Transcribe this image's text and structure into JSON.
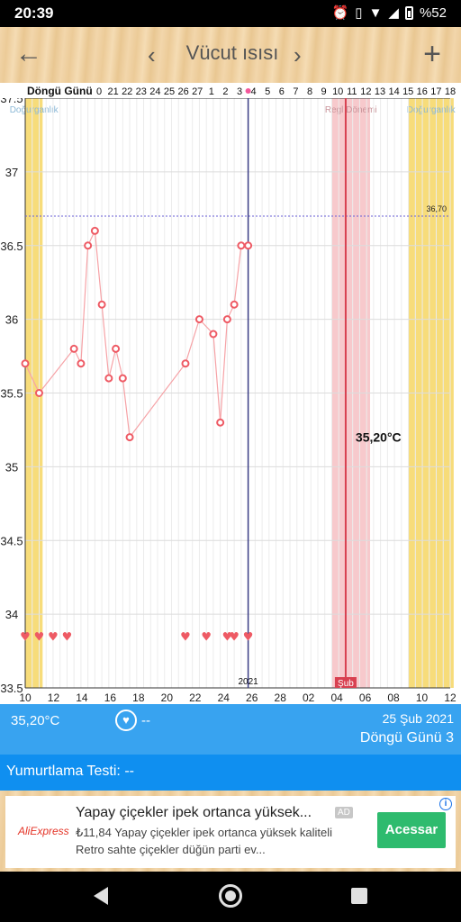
{
  "status": {
    "time": "20:39",
    "battery": "%52",
    "icons": [
      "alarm-icon",
      "vibrate-icon",
      "wifi-icon",
      "signal-icon",
      "battery-icon"
    ]
  },
  "header": {
    "title": "Vücut ısısı",
    "prev": "‹",
    "next": "›",
    "back": "←",
    "add": "+"
  },
  "chart_data": {
    "type": "line",
    "cycle_header_label": "Döngü Günü",
    "cycle_days": [
      "0",
      "21",
      "22",
      "23",
      "24",
      "25",
      "26",
      "27",
      "1",
      "2",
      "3",
      "4",
      "5",
      "6",
      "7",
      "8",
      "9",
      "10",
      "11",
      "12",
      "13",
      "14",
      "15",
      "16",
      "17",
      "18"
    ],
    "y_ticks": [
      "37.5",
      "37",
      "36.5",
      "36",
      "35.5",
      "35",
      "34.5",
      "34",
      "33.5"
    ],
    "ylim": [
      33.5,
      37.5
    ],
    "x_ticks": [
      "10",
      "12",
      "14",
      "16",
      "18",
      "20",
      "22",
      "24",
      "26",
      "28",
      "02",
      "04",
      "06",
      "08",
      "10",
      "12"
    ],
    "x_range_days": [
      "2021-01-10",
      "2021-03-12"
    ],
    "month_label": "Şub",
    "year_label": "2021",
    "cover_line": {
      "value": 36.7,
      "label": "36,70"
    },
    "bands": [
      {
        "label": "Doğurganlık",
        "from": "2021-01-10",
        "to": "2021-01-12",
        "color": "#f7dc7a"
      },
      {
        "label": "Regl Dönemi",
        "from": "2021-02-23",
        "to": "2021-02-28",
        "color": "#f7c9cc"
      },
      {
        "label": "Doğurganlık",
        "from": "2021-03-06",
        "to": "2021-03-12",
        "color": "#f7dc7a"
      }
    ],
    "series": [
      {
        "values": [
          [
            "2021-01-10",
            35.7
          ],
          [
            "2021-01-12",
            35.5
          ],
          [
            "2021-01-17",
            35.8
          ],
          [
            "2021-01-18",
            35.7
          ],
          [
            "2021-01-19",
            36.5
          ],
          [
            "2021-01-20",
            36.6
          ],
          [
            "2021-01-21",
            36.1
          ],
          [
            "2021-01-22",
            35.6
          ],
          [
            "2021-01-23",
            35.8
          ],
          [
            "2021-01-24",
            35.6
          ],
          [
            "2021-01-25",
            35.2
          ],
          [
            "2021-02-02",
            35.7
          ],
          [
            "2021-02-04",
            36.0
          ],
          [
            "2021-02-06",
            35.9
          ],
          [
            "2021-02-07",
            35.3
          ],
          [
            "2021-02-08",
            36.0
          ],
          [
            "2021-02-09",
            36.1
          ],
          [
            "2021-02-10",
            36.5
          ],
          [
            "2021-02-11",
            36.5
          ]
        ]
      }
    ],
    "selected": {
      "date": "2021-02-25",
      "value": 35.2,
      "label": "35,20°C"
    },
    "hearts": [
      "2021-01-10",
      "2021-01-12",
      "2021-01-14",
      "2021-01-16",
      "2021-02-02",
      "2021-02-05",
      "2021-02-08",
      "2021-02-09",
      "2021-02-11"
    ]
  },
  "info": {
    "temp": "35,20°C",
    "heart": "♥",
    "dash": "--",
    "date": "25 Şub 2021",
    "cycle": "Döngü Günü 3"
  },
  "ovulation": {
    "label": "Yumurtlama Testi: --"
  },
  "ad": {
    "logo": "AliExpress",
    "title": "Yapay çiçekler ipek ortanca yüksek...",
    "badge": "AD",
    "desc1": "₺11,84 Yapay çiçekler ipek ortanca yüksek kaliteli",
    "desc2": "Retro sahte çiçekler düğün parti ev...",
    "cta": "Acessar",
    "info": "i"
  }
}
